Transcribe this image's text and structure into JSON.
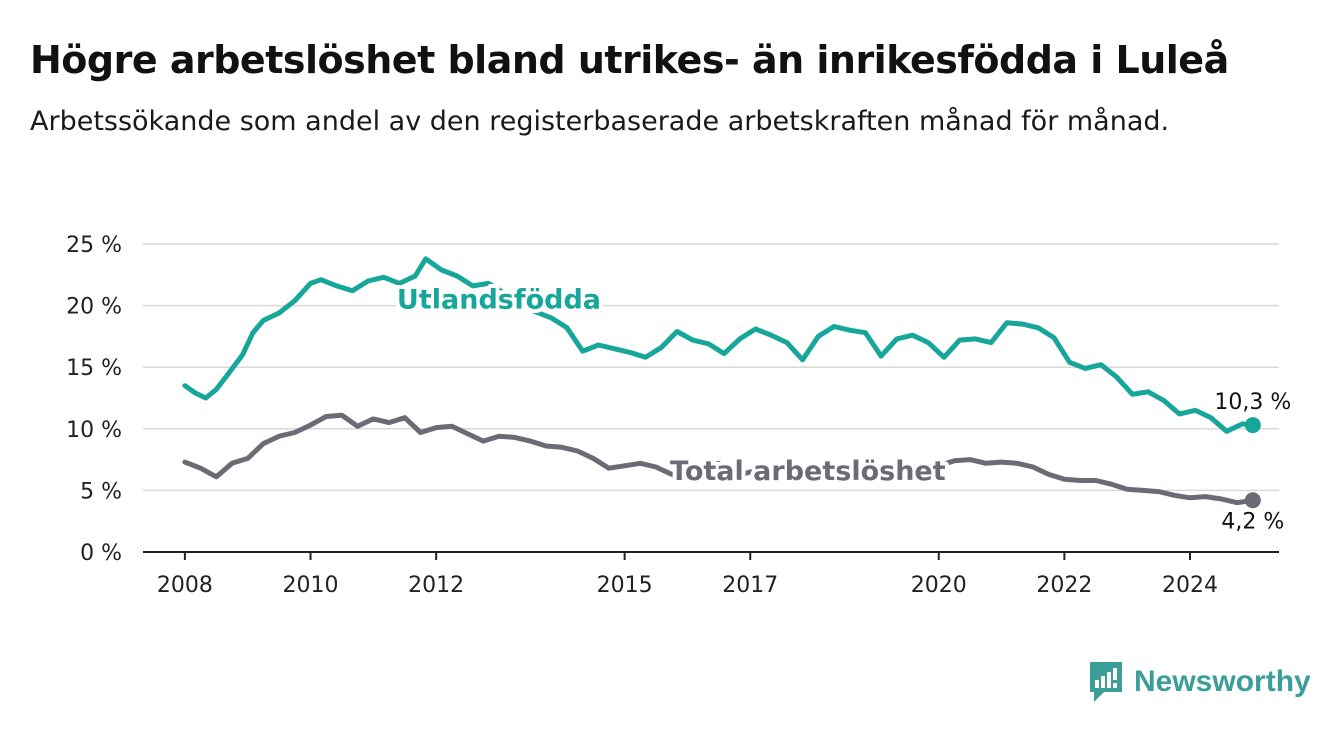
{
  "title": "Högre arbetslöshet bland utrikes- än inrikesfödda i Luleå",
  "subtitle": "Arbetssökande som andel av den registerbaserade arbetskraften månad för månad.",
  "brand": {
    "name": "Newsworthy",
    "icon": "bar-chart-logo-icon",
    "color": "#3b9e98"
  },
  "chart_data": {
    "type": "line",
    "x_ticks": [
      "2008",
      "2010",
      "2012",
      "2015",
      "2017",
      "2020",
      "2022",
      "2024"
    ],
    "y_ticks": [
      "0 %",
      "5 %",
      "10 %",
      "15 %",
      "20 %",
      "25 %"
    ],
    "ylim": [
      0,
      25
    ],
    "xlim": [
      "2007-05",
      "2025-06"
    ],
    "grid": true,
    "series": [
      {
        "name": "Utlandsfödda",
        "color": "#17a69a",
        "end_label": "10,3 %",
        "points": [
          [
            "2008-01",
            13.5
          ],
          [
            "2008-03",
            12.9
          ],
          [
            "2008-05",
            12.5
          ],
          [
            "2008-07",
            13.2
          ],
          [
            "2008-09",
            14.3
          ],
          [
            "2008-12",
            16.0
          ],
          [
            "2009-02",
            17.8
          ],
          [
            "2009-04",
            18.8
          ],
          [
            "2009-07",
            19.4
          ],
          [
            "2009-10",
            20.4
          ],
          [
            "2010-01",
            21.8
          ],
          [
            "2010-03",
            22.1
          ],
          [
            "2010-06",
            21.6
          ],
          [
            "2010-09",
            21.2
          ],
          [
            "2010-12",
            22.0
          ],
          [
            "2011-03",
            22.3
          ],
          [
            "2011-06",
            21.8
          ],
          [
            "2011-09",
            22.4
          ],
          [
            "2011-11",
            23.8
          ],
          [
            "2012-02",
            22.9
          ],
          [
            "2012-05",
            22.4
          ],
          [
            "2012-08",
            21.6
          ],
          [
            "2012-11",
            21.8
          ],
          [
            "2013-02",
            21.0
          ],
          [
            "2013-05",
            20.2
          ],
          [
            "2013-08",
            19.5
          ],
          [
            "2013-11",
            19.0
          ],
          [
            "2014-02",
            18.2
          ],
          [
            "2014-05",
            16.3
          ],
          [
            "2014-08",
            16.8
          ],
          [
            "2014-11",
            16.5
          ],
          [
            "2015-02",
            16.2
          ],
          [
            "2015-05",
            15.8
          ],
          [
            "2015-08",
            16.6
          ],
          [
            "2015-11",
            17.9
          ],
          [
            "2016-02",
            17.2
          ],
          [
            "2016-05",
            16.9
          ],
          [
            "2016-08",
            16.1
          ],
          [
            "2016-11",
            17.3
          ],
          [
            "2017-02",
            18.1
          ],
          [
            "2017-05",
            17.6
          ],
          [
            "2017-08",
            17.0
          ],
          [
            "2017-11",
            15.6
          ],
          [
            "2018-02",
            17.5
          ],
          [
            "2018-05",
            18.3
          ],
          [
            "2018-08",
            18.0
          ],
          [
            "2018-11",
            17.8
          ],
          [
            "2019-02",
            15.9
          ],
          [
            "2019-05",
            17.3
          ],
          [
            "2019-08",
            17.6
          ],
          [
            "2019-11",
            17.0
          ],
          [
            "2020-02",
            15.8
          ],
          [
            "2020-05",
            17.2
          ],
          [
            "2020-08",
            17.3
          ],
          [
            "2020-11",
            17.0
          ],
          [
            "2021-02",
            18.6
          ],
          [
            "2021-05",
            18.5
          ],
          [
            "2021-08",
            18.2
          ],
          [
            "2021-11",
            17.4
          ],
          [
            "2022-02",
            15.4
          ],
          [
            "2022-05",
            14.9
          ],
          [
            "2022-08",
            15.2
          ],
          [
            "2022-11",
            14.2
          ],
          [
            "2023-02",
            12.8
          ],
          [
            "2023-05",
            13.0
          ],
          [
            "2023-08",
            12.3
          ],
          [
            "2023-11",
            11.2
          ],
          [
            "2024-02",
            11.5
          ],
          [
            "2024-05",
            10.9
          ],
          [
            "2024-08",
            9.8
          ],
          [
            "2024-11",
            10.4
          ],
          [
            "2025-01",
            10.3
          ]
        ]
      },
      {
        "name": "Total arbetslöshet",
        "color": "#6d6a75",
        "end_label": "4,2 %",
        "points": [
          [
            "2008-01",
            7.3
          ],
          [
            "2008-04",
            6.8
          ],
          [
            "2008-07",
            6.1
          ],
          [
            "2008-10",
            7.2
          ],
          [
            "2009-01",
            7.6
          ],
          [
            "2009-04",
            8.8
          ],
          [
            "2009-07",
            9.4
          ],
          [
            "2009-10",
            9.7
          ],
          [
            "2010-01",
            10.3
          ],
          [
            "2010-04",
            11.0
          ],
          [
            "2010-07",
            11.1
          ],
          [
            "2010-10",
            10.2
          ],
          [
            "2011-01",
            10.8
          ],
          [
            "2011-04",
            10.5
          ],
          [
            "2011-07",
            10.9
          ],
          [
            "2011-10",
            9.7
          ],
          [
            "2012-01",
            10.1
          ],
          [
            "2012-04",
            10.2
          ],
          [
            "2012-07",
            9.6
          ],
          [
            "2012-10",
            9.0
          ],
          [
            "2013-01",
            9.4
          ],
          [
            "2013-04",
            9.3
          ],
          [
            "2013-07",
            9.0
          ],
          [
            "2013-10",
            8.6
          ],
          [
            "2014-01",
            8.5
          ],
          [
            "2014-04",
            8.2
          ],
          [
            "2014-07",
            7.6
          ],
          [
            "2014-10",
            6.8
          ],
          [
            "2015-01",
            7.0
          ],
          [
            "2015-04",
            7.2
          ],
          [
            "2015-07",
            6.9
          ],
          [
            "2015-10",
            6.3
          ],
          [
            "2016-01",
            6.6
          ],
          [
            "2016-04",
            7.0
          ],
          [
            "2016-07",
            7.2
          ],
          [
            "2016-10",
            6.1
          ],
          [
            "2017-01",
            6.5
          ],
          [
            "2017-04",
            6.7
          ],
          [
            "2017-07",
            6.8
          ],
          [
            "2017-10",
            6.6
          ],
          [
            "2018-01",
            6.9
          ],
          [
            "2018-04",
            7.0
          ],
          [
            "2018-07",
            6.8
          ],
          [
            "2018-10",
            6.7
          ],
          [
            "2019-01",
            6.9
          ],
          [
            "2019-04",
            7.1
          ],
          [
            "2019-07",
            7.0
          ],
          [
            "2019-10",
            6.8
          ],
          [
            "2020-01",
            7.0
          ],
          [
            "2020-04",
            7.4
          ],
          [
            "2020-07",
            7.5
          ],
          [
            "2020-10",
            7.2
          ],
          [
            "2021-01",
            7.3
          ],
          [
            "2021-04",
            7.2
          ],
          [
            "2021-07",
            6.9
          ],
          [
            "2021-10",
            6.3
          ],
          [
            "2022-01",
            5.9
          ],
          [
            "2022-04",
            5.8
          ],
          [
            "2022-07",
            5.8
          ],
          [
            "2022-10",
            5.5
          ],
          [
            "2023-01",
            5.1
          ],
          [
            "2023-04",
            5.0
          ],
          [
            "2023-07",
            4.9
          ],
          [
            "2023-10",
            4.6
          ],
          [
            "2024-01",
            4.4
          ],
          [
            "2024-04",
            4.5
          ],
          [
            "2024-07",
            4.3
          ],
          [
            "2024-10",
            4.0
          ],
          [
            "2025-01",
            4.2
          ]
        ]
      }
    ],
    "labels": [
      {
        "text": "Utlandsfödda",
        "at": [
          "2013-01",
          20.4
        ],
        "color": "#17a69a"
      },
      {
        "text": "Total arbetslöshet",
        "at": [
          "2017-12",
          6.5
        ],
        "color": "#6d6a75"
      }
    ]
  }
}
